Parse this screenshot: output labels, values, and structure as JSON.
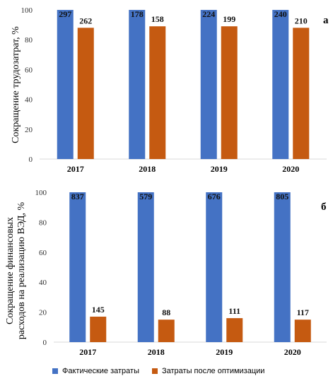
{
  "colors": {
    "actual": "#4472C4",
    "optimized": "#C55A11",
    "axis": "#D9D9D9"
  },
  "chart_data": [
    {
      "type": "bar",
      "panel_letter": "а",
      "categories": [
        "2017",
        "2018",
        "2019",
        "2020"
      ],
      "ylabel": "Сокращение трудозатрат, %",
      "ylim": [
        0,
        100
      ],
      "yticks": [
        0,
        20,
        40,
        60,
        80,
        100
      ],
      "series": [
        {
          "name": "Фактические затраты",
          "values": [
            100,
            100,
            100,
            100
          ],
          "data_labels": [
            "297",
            "178",
            "224",
            "240"
          ]
        },
        {
          "name": "Затраты после оптимизации",
          "values": [
            88,
            89,
            89,
            88
          ],
          "data_labels": [
            "262",
            "158",
            "199",
            "210"
          ]
        }
      ]
    },
    {
      "type": "bar",
      "panel_letter": "б",
      "categories": [
        "2017",
        "2018",
        "2019",
        "2020"
      ],
      "ylabel_lines": [
        "Сокращение финансовых",
        "расходов на реализацию ВЭД, %"
      ],
      "ylim": [
        0,
        100
      ],
      "yticks": [
        0,
        20,
        40,
        60,
        80,
        100
      ],
      "series": [
        {
          "name": "Фактические затраты",
          "values": [
            100,
            100,
            100,
            100
          ],
          "data_labels": [
            "837",
            "579",
            "676",
            "805"
          ]
        },
        {
          "name": "Затраты после оптимизации",
          "values": [
            17,
            15,
            16,
            15
          ],
          "data_labels": [
            "145",
            "88",
            "111",
            "117"
          ]
        }
      ]
    }
  ],
  "legend": {
    "items": [
      {
        "label": "Фактические затраты"
      },
      {
        "label": "Затраты после оптимизации"
      }
    ]
  }
}
